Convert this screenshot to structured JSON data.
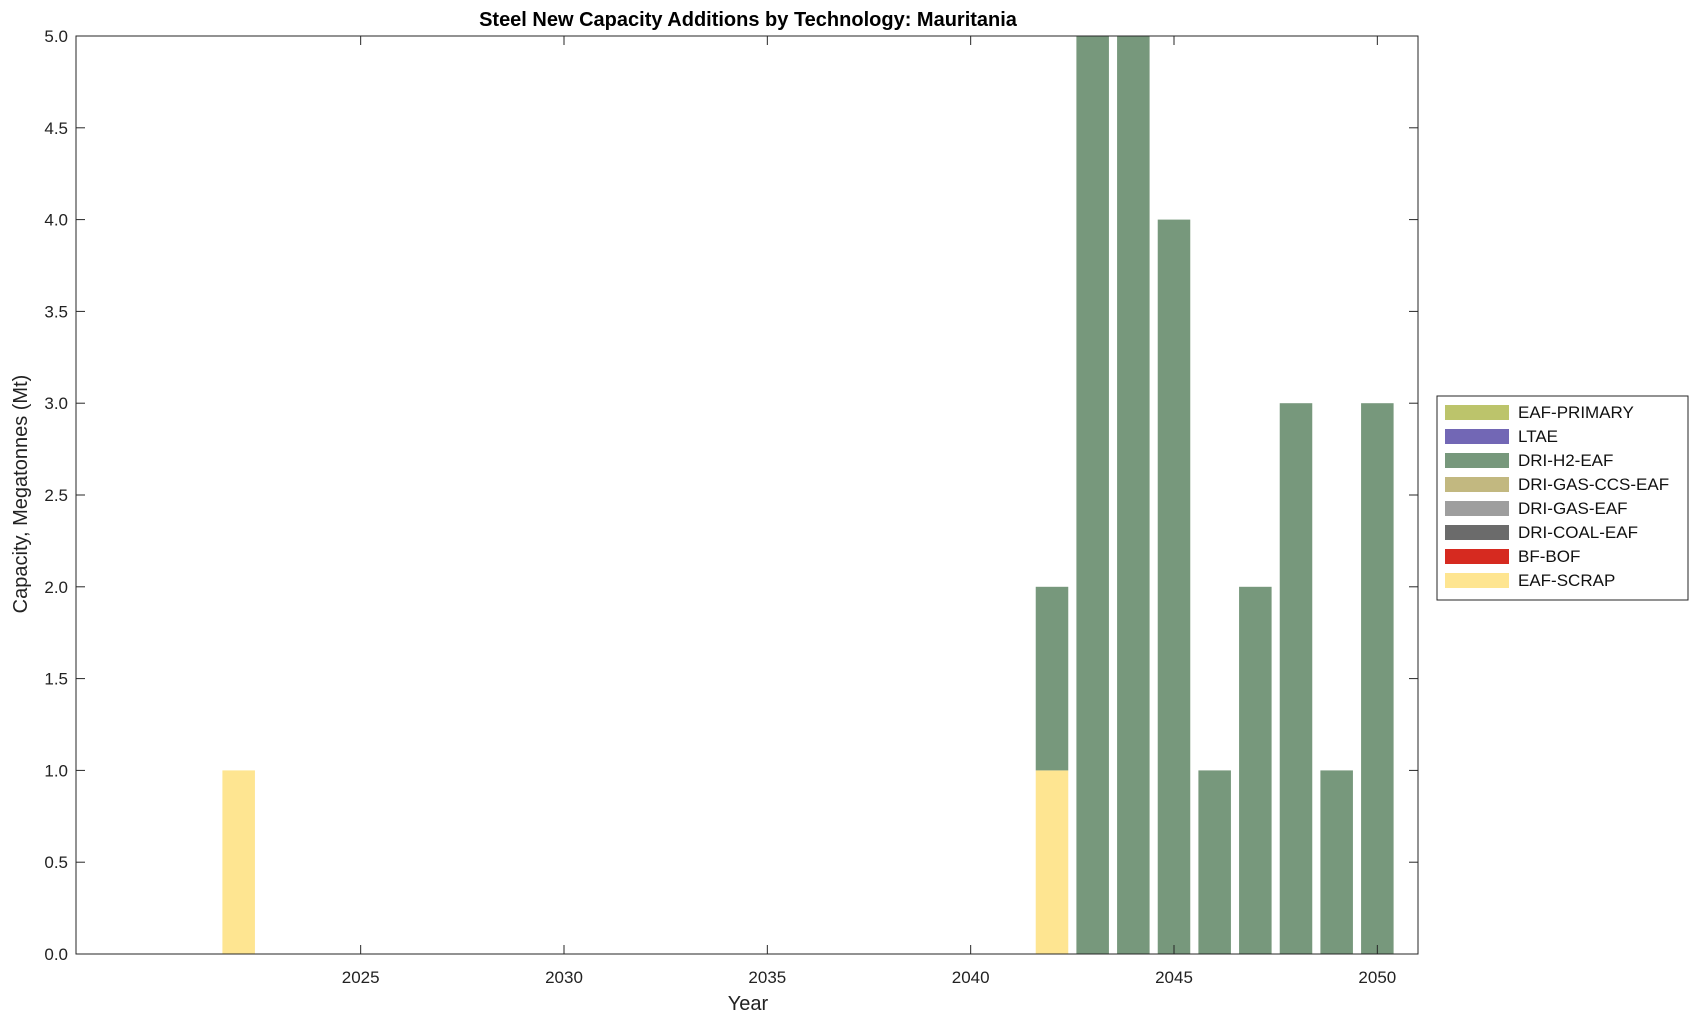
{
  "chart_data": {
    "type": "bar",
    "stacked": true,
    "title": "Steel New Capacity Additions by Technology: Mauritania",
    "xlabel": "Year",
    "ylabel": "Capacity, Megatonnes (Mt)",
    "xlim": [
      2018,
      2051
    ],
    "ylim": [
      0,
      5
    ],
    "x_ticks": [
      2025,
      2030,
      2035,
      2040,
      2045,
      2050
    ],
    "y_ticks": [
      0.0,
      0.5,
      1.0,
      1.5,
      2.0,
      2.5,
      3.0,
      3.5,
      4.0,
      4.5,
      5.0
    ],
    "y_tick_labels": [
      "0.0",
      "0.5",
      "1.0",
      "1.5",
      "2.0",
      "2.5",
      "3.0",
      "3.5",
      "4.0",
      "4.5",
      "5.0"
    ],
    "grid": false,
    "legend_position": "right",
    "categories": [
      2022,
      2042,
      2043,
      2044,
      2045,
      2046,
      2047,
      2048,
      2049,
      2050
    ],
    "series": [
      {
        "name": "EAF-SCRAP",
        "color": "#FEE591",
        "values": [
          1,
          1,
          0,
          0,
          0,
          0,
          0,
          0,
          0,
          0
        ]
      },
      {
        "name": "BF-BOF",
        "color": "#D62A20",
        "values": [
          0,
          0,
          0,
          0,
          0,
          0,
          0,
          0,
          0,
          0
        ]
      },
      {
        "name": "DRI-COAL-EAF",
        "color": "#6B6B6B",
        "values": [
          0,
          0,
          0,
          0,
          0,
          0,
          0,
          0,
          0,
          0
        ]
      },
      {
        "name": "DRI-GAS-EAF",
        "color": "#9E9E9E",
        "values": [
          0,
          0,
          0,
          0,
          0,
          0,
          0,
          0,
          0,
          0
        ]
      },
      {
        "name": "DRI-GAS-CCS-EAF",
        "color": "#C2B880",
        "values": [
          0,
          0,
          0,
          0,
          0,
          0,
          0,
          0,
          0,
          0
        ]
      },
      {
        "name": "DRI-H2-EAF",
        "color": "#77987C",
        "values": [
          0,
          1,
          5,
          5,
          4,
          1,
          2,
          3,
          1,
          3
        ]
      },
      {
        "name": "LTAE",
        "color": "#7267B5",
        "values": [
          0,
          0,
          0,
          0,
          0,
          0,
          0,
          0,
          0,
          0
        ]
      },
      {
        "name": "EAF-PRIMARY",
        "color": "#BCC46B",
        "values": [
          0,
          0,
          0,
          0,
          0,
          0,
          0,
          0,
          0,
          0
        ]
      }
    ],
    "legend_order": [
      "EAF-PRIMARY",
      "LTAE",
      "DRI-H2-EAF",
      "DRI-GAS-CCS-EAF",
      "DRI-GAS-EAF",
      "DRI-COAL-EAF",
      "BF-BOF",
      "EAF-SCRAP"
    ]
  }
}
